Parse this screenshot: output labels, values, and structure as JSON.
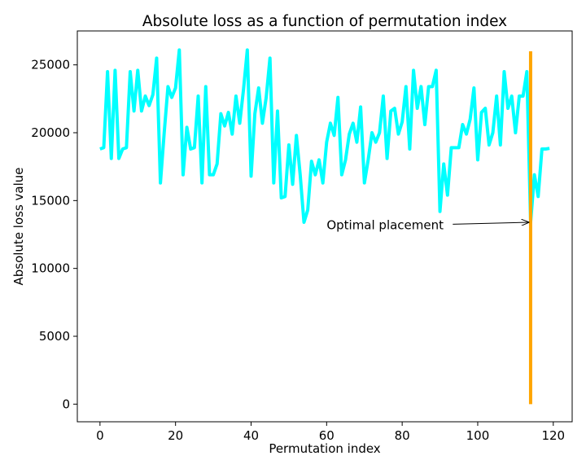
{
  "chart_data": {
    "type": "line",
    "title": "Absolute loss as a function of permutation index",
    "xlabel": "Permutation index",
    "ylabel": "Absolute loss value",
    "xlim": [
      -6,
      125
    ],
    "ylim": [
      -1300,
      27500
    ],
    "xticks": [
      0,
      20,
      40,
      60,
      80,
      100,
      120
    ],
    "yticks": [
      0,
      5000,
      10000,
      15000,
      20000,
      25000
    ],
    "grid": false,
    "series": [
      {
        "color": "#00ffff",
        "x": [
          0,
          1,
          2,
          3,
          4,
          5,
          6,
          7,
          8,
          9,
          10,
          11,
          12,
          13,
          14,
          15,
          16,
          17,
          18,
          19,
          20,
          21,
          22,
          23,
          24,
          25,
          26,
          27,
          28,
          29,
          30,
          31,
          32,
          33,
          34,
          35,
          36,
          37,
          38,
          39,
          40,
          41,
          42,
          43,
          44,
          45,
          46,
          47,
          48,
          49,
          50,
          51,
          52,
          53,
          54,
          55,
          56,
          57,
          58,
          59,
          60,
          61,
          62,
          63,
          64,
          65,
          66,
          67,
          68,
          69,
          70,
          71,
          72,
          73,
          74,
          75,
          76,
          77,
          78,
          79,
          80,
          81,
          82,
          83,
          84,
          85,
          86,
          87,
          88,
          89,
          90,
          91,
          92,
          93,
          94,
          95,
          96,
          97,
          98,
          99,
          100,
          101,
          102,
          103,
          104,
          105,
          106,
          107,
          108,
          109,
          110,
          111,
          112,
          113,
          114,
          115,
          116,
          117,
          118,
          119
        ],
        "y": [
          18800,
          18900,
          24500,
          18100,
          24600,
          18100,
          18800,
          18900,
          24500,
          21600,
          24600,
          21600,
          22700,
          22000,
          22800,
          25500,
          16300,
          20000,
          23400,
          22600,
          23300,
          26100,
          16900,
          20400,
          18800,
          18900,
          22700,
          16300,
          23400,
          16900,
          16900,
          17700,
          21400,
          20500,
          21500,
          19900,
          22700,
          20700,
          23200,
          26100,
          16800,
          21400,
          23300,
          20700,
          22600,
          25500,
          16300,
          21600,
          15200,
          15300,
          19100,
          16200,
          19800,
          16900,
          13400,
          14300,
          17900,
          16900,
          18000,
          16300,
          19300,
          20700,
          19800,
          22600,
          16900,
          18000,
          19900,
          20700,
          19300,
          21900,
          16300,
          18000,
          20000,
          19300,
          20000,
          22700,
          18100,
          21600,
          21800,
          19900,
          20800,
          23400,
          18800,
          24600,
          21800,
          23400,
          20600,
          23400,
          23400,
          24600,
          14200,
          17700,
          15400,
          18900,
          18900,
          18900,
          20600,
          19900,
          21000,
          23300,
          18000,
          21500,
          21800,
          19100,
          20000,
          22700,
          19100,
          24500,
          21800,
          22700,
          20000,
          22700,
          22700,
          24500,
          13400,
          16900,
          15300,
          18800,
          18800,
          18850
        ]
      }
    ],
    "vline": {
      "x": 114,
      "y_from": 0,
      "y_to": 26000,
      "color": "#ffa500"
    },
    "annotation": {
      "text": "Optimal placement",
      "text_x": 60,
      "text_y": 13200,
      "point_x": 113.9,
      "point_y": 13400
    }
  }
}
